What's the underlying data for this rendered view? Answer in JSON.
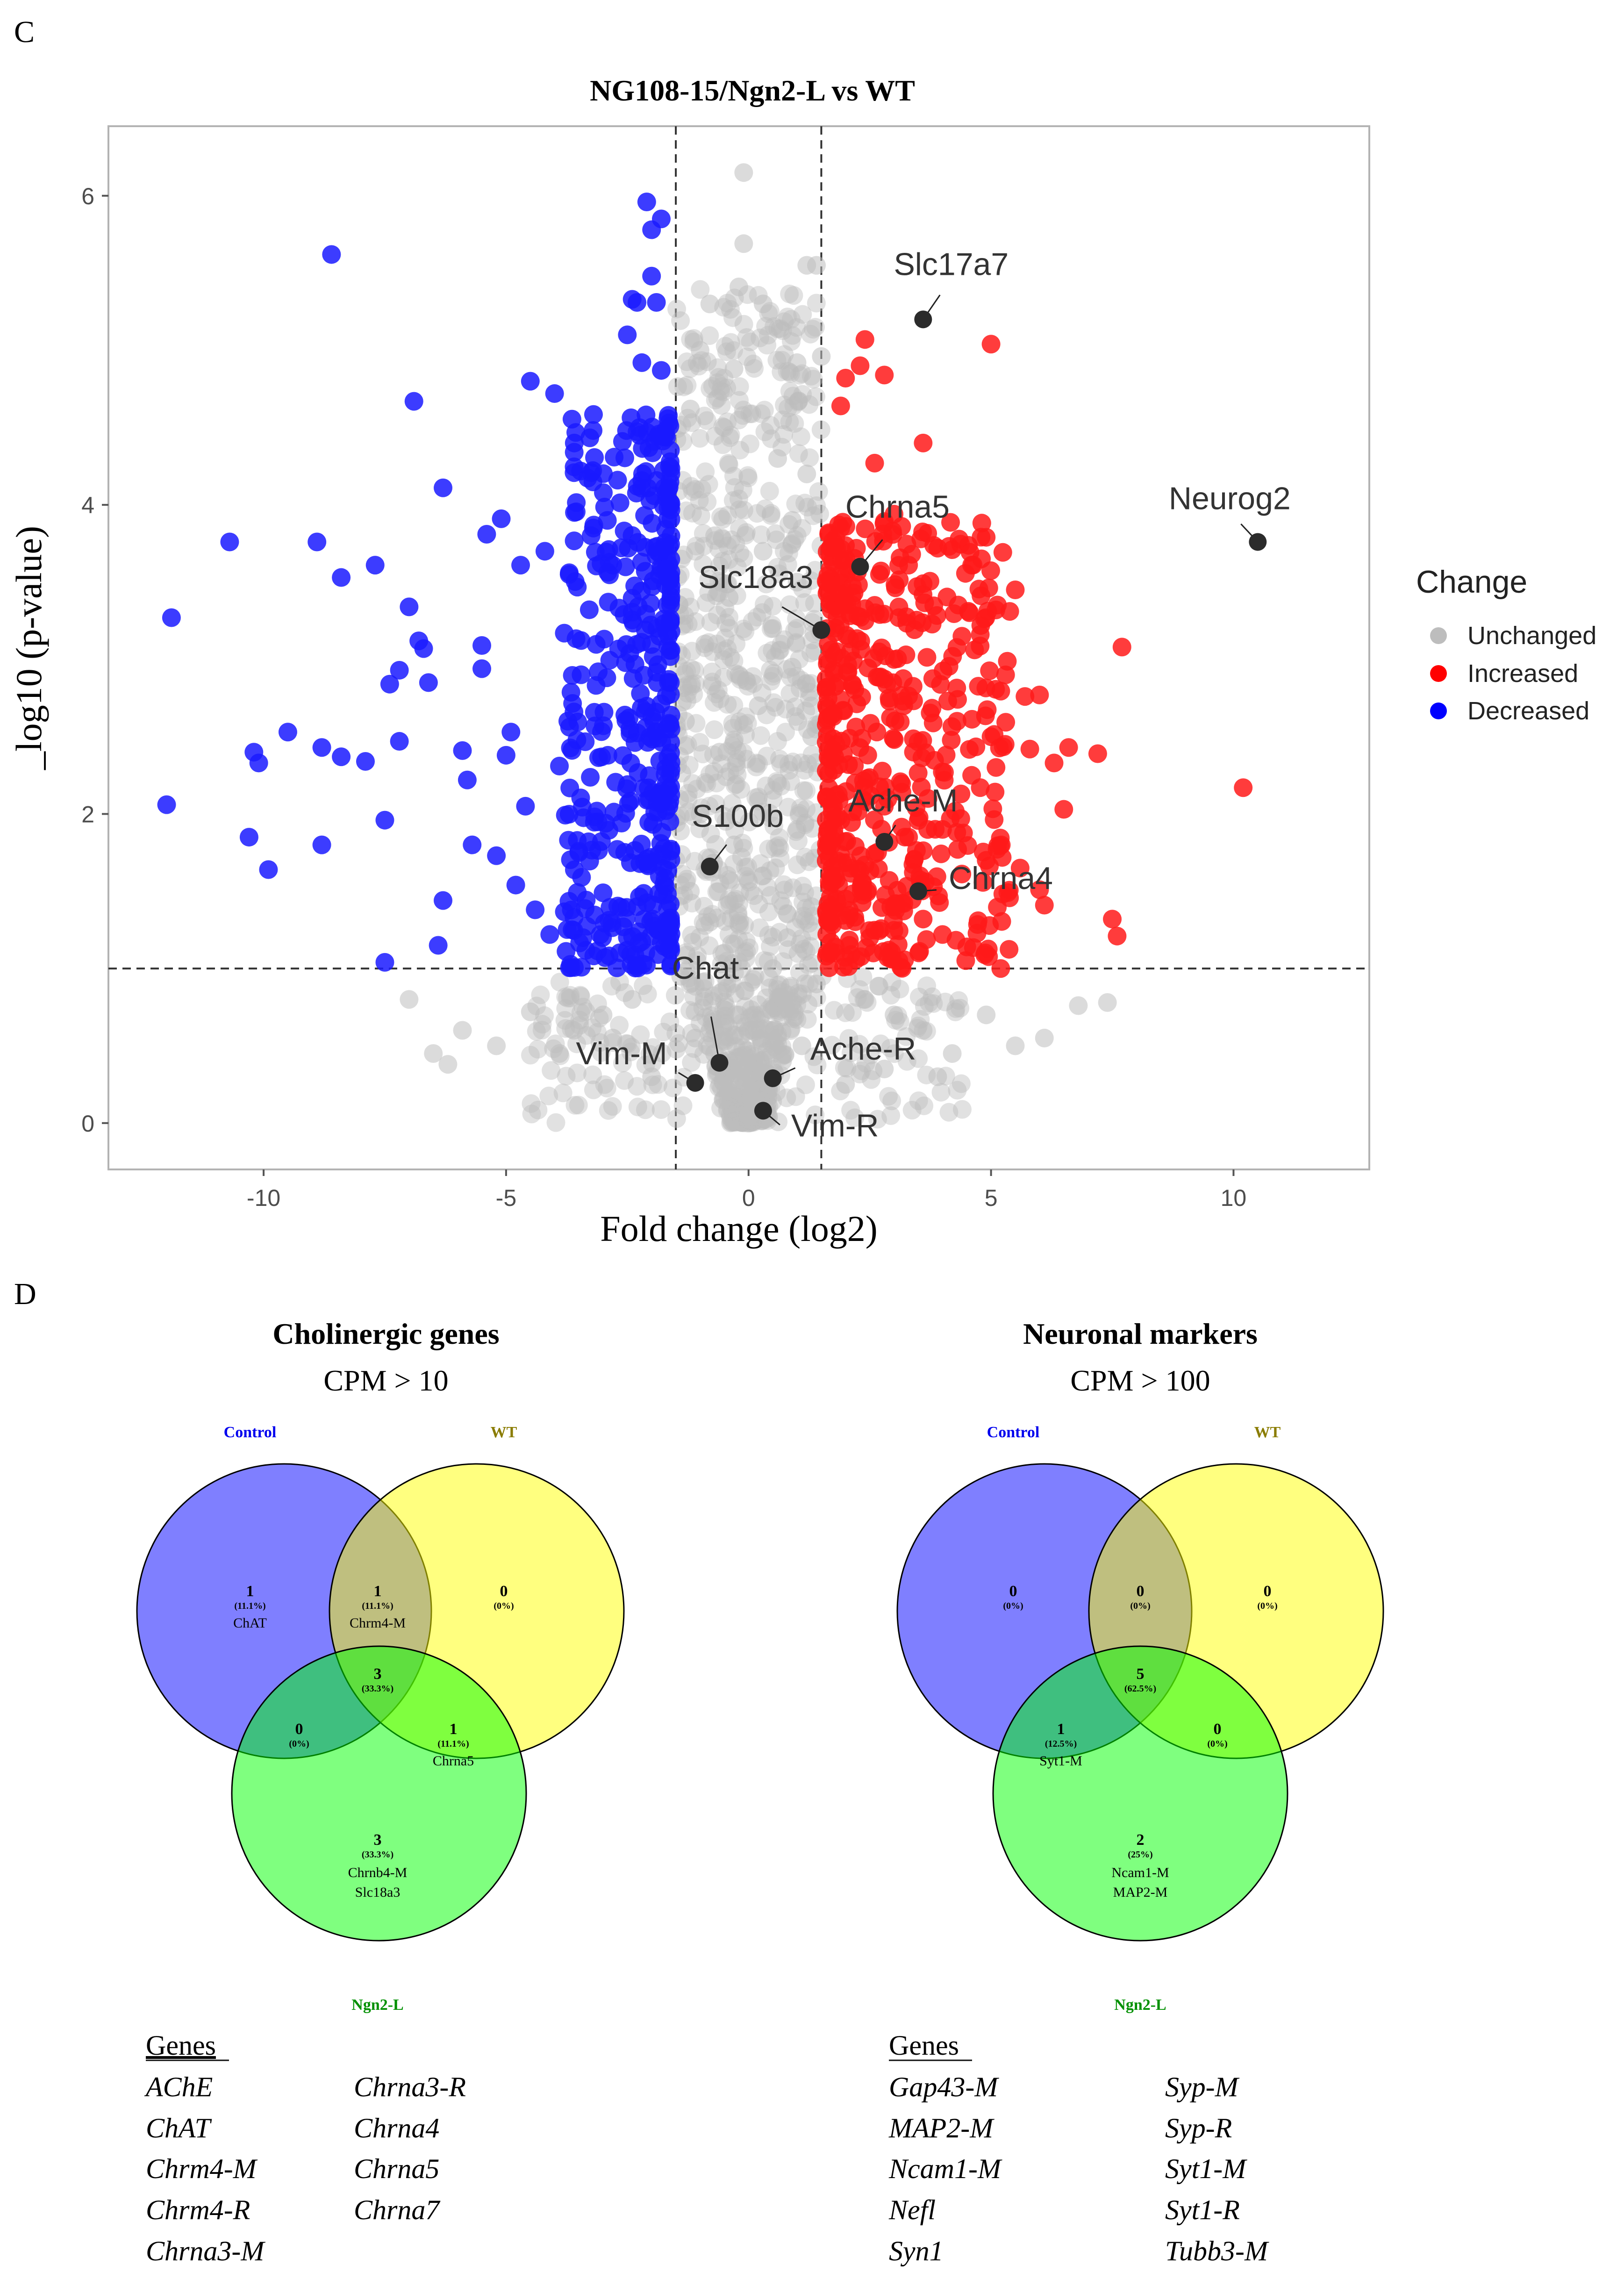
{
  "panel_c": {
    "letter": "C"
  },
  "panel_d": {
    "letter": "D"
  },
  "chart_data": [
    {
      "type": "scatter",
      "title": "NG108-15/Ngn2-L vs WT",
      "xlabel": "Fold change (log2)",
      "ylabel": "_log10 (p-value)",
      "xlim": [
        -13.2,
        12.8
      ],
      "ylim": [
        -0.3,
        6.45
      ],
      "xticks": [
        -10,
        -5,
        0,
        5,
        10
      ],
      "xtick_labels": [
        "-10",
        "-5",
        "0",
        "5",
        "10"
      ],
      "yticks": [
        0,
        2,
        4,
        6
      ],
      "ytick_labels": [
        "0",
        "2",
        "4",
        "6"
      ],
      "thresholds": {
        "log2fc": [
          -1.5,
          1.5
        ],
        "neg_log10_p": 1.0
      },
      "grid": false,
      "legend": {
        "title": "Change",
        "placement": "right",
        "entries": [
          {
            "label": "Unchanged",
            "color": "#bdbdbd"
          },
          {
            "label": "Increased",
            "color": "#ff0000"
          },
          {
            "label": "Decreased",
            "color": "#0000ff"
          }
        ]
      },
      "colors": {
        "unchanged": "#bdbdbd",
        "increased": "#ff1a1a",
        "decreased": "#1a1aff",
        "labeled": "#2b2b2b"
      },
      "series": [
        {
          "name": "Decreased",
          "points": [
            [
              -11.9,
              3.27
            ],
            [
              -12.0,
              2.06
            ],
            [
              -10.7,
              3.76
            ],
            [
              -10.2,
              2.4
            ],
            [
              -10.1,
              2.33
            ],
            [
              -10.3,
              1.85
            ],
            [
              -9.9,
              1.64
            ],
            [
              -9.5,
              2.53
            ],
            [
              -8.9,
              3.76
            ],
            [
              -8.8,
              2.43
            ],
            [
              -8.8,
              1.8
            ],
            [
              -8.6,
              5.62
            ],
            [
              -8.4,
              3.53
            ],
            [
              -8.4,
              2.37
            ],
            [
              -7.9,
              2.34
            ],
            [
              -7.7,
              3.61
            ],
            [
              -7.5,
              1.96
            ],
            [
              -7.4,
              2.84
            ],
            [
              -7.2,
              2.93
            ],
            [
              -7.2,
              2.47
            ],
            [
              -7.0,
              3.34
            ],
            [
              -6.8,
              3.12
            ],
            [
              -6.7,
              3.07
            ],
            [
              -6.6,
              2.85
            ],
            [
              -6.9,
              4.67
            ],
            [
              -6.3,
              4.11
            ],
            [
              -5.9,
              2.41
            ],
            [
              -5.8,
              2.22
            ],
            [
              -5.7,
              1.8
            ],
            [
              -5.5,
              3.09
            ],
            [
              -5.5,
              2.94
            ],
            [
              -5.4,
              3.81
            ],
            [
              -5.1,
              3.91
            ],
            [
              -5.0,
              2.38
            ],
            [
              -4.9,
              2.53
            ],
            [
              -4.7,
              3.61
            ],
            [
              -4.6,
              2.05
            ],
            [
              -4.5,
              4.8
            ],
            [
              -4.2,
              3.7
            ],
            [
              -4.0,
              4.72
            ],
            [
              -3.9,
              2.31
            ],
            [
              -3.8,
              3.17
            ],
            [
              -3.7,
              3.55
            ],
            [
              -3.6,
              2.66
            ],
            [
              -3.5,
              1.75
            ],
            [
              -3.3,
              1.82
            ],
            [
              -3.2,
              3.85
            ],
            [
              -3.1,
              2.92
            ],
            [
              -3.0,
              1.49
            ],
            [
              -2.9,
              2.38
            ],
            [
              -2.8,
              3.61
            ],
            [
              -2.7,
              4.16
            ],
            [
              -2.6,
              4.41
            ],
            [
              -2.5,
              5.1
            ],
            [
              -2.4,
              5.33
            ],
            [
              -2.3,
              5.31
            ],
            [
              -2.2,
              4.92
            ],
            [
              -2.1,
              5.96
            ],
            [
              -2.0,
              5.78
            ],
            [
              -2.0,
              5.48
            ],
            [
              -1.9,
              5.31
            ],
            [
              -1.8,
              4.87
            ],
            [
              -1.8,
              5.85
            ],
            [
              -6.4,
              1.15
            ],
            [
              -6.3,
              1.44
            ],
            [
              -7.5,
              1.04
            ],
            [
              -5.2,
              1.73
            ],
            [
              -4.8,
              1.54
            ],
            [
              -4.4,
              1.38
            ],
            [
              -4.1,
              1.22
            ]
          ]
        },
        {
          "name": "Increased",
          "points": [
            [
              1.9,
              4.64
            ],
            [
              2.0,
              4.82
            ],
            [
              2.3,
              4.9
            ],
            [
              2.4,
              5.07
            ],
            [
              2.8,
              4.84
            ],
            [
              2.6,
              4.27
            ],
            [
              3.6,
              4.4
            ],
            [
              3.0,
              3.94
            ],
            [
              3.3,
              3.61
            ],
            [
              3.6,
              3.49
            ],
            [
              3.9,
              3.72
            ],
            [
              4.2,
              3.71
            ],
            [
              4.6,
              3.61
            ],
            [
              4.9,
              3.79
            ],
            [
              5.0,
              5.04
            ],
            [
              5.1,
              3.32
            ],
            [
              5.5,
              3.45
            ],
            [
              5.7,
              2.76
            ],
            [
              6.0,
              2.77
            ],
            [
              6.3,
              2.33
            ],
            [
              6.5,
              2.03
            ],
            [
              6.6,
              2.43
            ],
            [
              5.8,
              2.42
            ],
            [
              6.0,
              1.51
            ],
            [
              6.1,
              1.41
            ],
            [
              7.2,
              2.39
            ],
            [
              7.7,
              3.08
            ],
            [
              7.5,
              1.32
            ],
            [
              7.6,
              1.21
            ],
            [
              10.2,
              2.17
            ],
            [
              5.2,
              1.0
            ],
            [
              4.5,
              1.14
            ],
            [
              4.0,
              1.22
            ],
            [
              3.6,
              1.32
            ],
            [
              2.9,
              1.57
            ],
            [
              2.3,
              1.63
            ],
            [
              2.2,
              1.79
            ],
            [
              1.8,
              1.97
            ],
            [
              1.7,
              2.35
            ],
            [
              1.9,
              2.74
            ],
            [
              2.1,
              3.05
            ],
            [
              2.4,
              3.25
            ],
            [
              2.7,
              3.55
            ],
            [
              3.0,
              3.0
            ],
            [
              3.2,
              2.7
            ],
            [
              3.4,
              2.4
            ],
            [
              3.7,
              2.1
            ],
            [
              4.0,
              1.9
            ],
            [
              4.3,
              2.6
            ],
            [
              4.6,
              2.25
            ],
            [
              4.9,
              1.7
            ],
            [
              5.3,
              2.9
            ],
            [
              5.6,
              1.65
            ],
            [
              1.7,
              1.3
            ],
            [
              1.8,
              1.1
            ],
            [
              2.0,
              1.45
            ],
            [
              2.5,
              1.2
            ],
            [
              3.1,
              1.05
            ],
            [
              3.3,
              1.85
            ],
            [
              1.9,
              3.85
            ],
            [
              2.6,
              3.35
            ],
            [
              4.4,
              3.15
            ],
            [
              5.0,
              2.5
            ],
            [
              2.2,
              2.2
            ],
            [
              2.8,
              2.05
            ]
          ]
        },
        {
          "name": "Unchanged",
          "points": [
            [
              -0.1,
              6.15
            ],
            [
              -0.1,
              5.69
            ],
            [
              -0.2,
              5.41
            ],
            [
              0.3,
              5.3
            ],
            [
              -0.8,
              5.3
            ],
            [
              1.2,
              5.55
            ],
            [
              1.4,
              5.55
            ],
            [
              -1.0,
              5.0
            ],
            [
              1.0,
              4.92
            ],
            [
              1.5,
              4.96
            ],
            [
              -0.3,
              4.88
            ],
            [
              -1.2,
              4.62
            ],
            [
              -0.5,
              4.5
            ],
            [
              0.6,
              4.3
            ],
            [
              1.2,
              4.2
            ],
            [
              -1.1,
              4.1
            ],
            [
              0.9,
              3.9
            ],
            [
              -0.7,
              3.8
            ],
            [
              0.3,
              3.7
            ],
            [
              1.0,
              3.5
            ],
            [
              -0.4,
              3.4
            ],
            [
              0.5,
              3.2
            ],
            [
              -0.9,
              3.1
            ],
            [
              0.9,
              2.95
            ],
            [
              -0.2,
              2.9
            ],
            [
              0.2,
              2.7
            ],
            [
              -1.3,
              2.6
            ],
            [
              1.3,
              2.5
            ],
            [
              -0.6,
              2.4
            ],
            [
              0.6,
              2.2
            ],
            [
              -1.0,
              2.0
            ],
            [
              1.0,
              1.9
            ],
            [
              -0.3,
              1.8
            ],
            [
              0.3,
              1.6
            ],
            [
              -1.2,
              1.5
            ],
            [
              1.3,
              1.4
            ],
            [
              -0.8,
              1.3
            ],
            [
              0.8,
              1.2
            ],
            [
              -0.5,
              1.1
            ],
            [
              0.5,
              1.0
            ],
            [
              -1.4,
              0.95
            ],
            [
              1.4,
              0.9
            ],
            [
              -0.2,
              0.7
            ],
            [
              0.2,
              0.6
            ],
            [
              -0.7,
              0.45
            ],
            [
              0.7,
              0.4
            ],
            [
              -1.1,
              0.55
            ],
            [
              1.1,
              0.5
            ],
            [
              -0.1,
              0.25
            ],
            [
              0.1,
              0.15
            ],
            [
              0.0,
              0.05
            ],
            [
              -2.4,
              0.8
            ],
            [
              -3.0,
              0.7
            ],
            [
              -3.6,
              0.6
            ],
            [
              -4.5,
              0.72
            ],
            [
              -5.2,
              0.5
            ],
            [
              -5.9,
              0.6
            ],
            [
              -6.5,
              0.45
            ],
            [
              -7.0,
              0.8
            ],
            [
              -3.9,
              0.45
            ],
            [
              -2.8,
              0.55
            ],
            [
              2.4,
              0.8
            ],
            [
              3.0,
              0.7
            ],
            [
              3.6,
              0.6
            ],
            [
              4.2,
              0.45
            ],
            [
              4.9,
              0.7
            ],
            [
              5.5,
              0.5
            ],
            [
              6.1,
              0.55
            ],
            [
              6.8,
              0.76
            ],
            [
              7.4,
              0.78
            ],
            [
              2.8,
              0.35
            ],
            [
              3.9,
              0.3
            ],
            [
              -6.2,
              0.38
            ],
            [
              -2.0,
              0.3
            ],
            [
              2.0,
              0.25
            ]
          ]
        }
      ],
      "labeled_genes": [
        {
          "label": "Slc17a7",
          "x": 3.6,
          "y": 5.2
        },
        {
          "label": "Neurog2",
          "x": 10.5,
          "y": 3.76
        },
        {
          "label": "Chrna5",
          "x": 2.3,
          "y": 3.6
        },
        {
          "label": "Slc18a3",
          "x": 1.5,
          "y": 3.19
        },
        {
          "label": "Ache-M",
          "x": 2.8,
          "y": 1.82
        },
        {
          "label": "S100b",
          "x": -0.8,
          "y": 1.66
        },
        {
          "label": "Chrna4",
          "x": 3.5,
          "y": 1.5
        },
        {
          "label": "Chat",
          "x": -0.6,
          "y": 0.39
        },
        {
          "label": "Ache-R",
          "x": 0.5,
          "y": 0.29
        },
        {
          "label": "Vim-M",
          "x": -1.1,
          "y": 0.26
        },
        {
          "label": "Vim-R",
          "x": 0.3,
          "y": 0.08
        }
      ]
    }
  ],
  "venns": [
    {
      "title": "Cholinergic genes",
      "subtitle": "CPM > 10",
      "sets": [
        {
          "name": "Control",
          "color": "#0000ff"
        },
        {
          "name": "WT",
          "color": "#9a8a00"
        },
        {
          "name": "Ngn2-L",
          "color": "#00a000"
        }
      ],
      "regions": {
        "control_only": {
          "count": "1",
          "pct": "(11.1%)",
          "genes": [
            "ChAT"
          ]
        },
        "control_wt": {
          "count": "1",
          "pct": "(11.1%)",
          "genes": [
            "Chrm4-M"
          ]
        },
        "wt_only": {
          "count": "0",
          "pct": "(0%)",
          "genes": []
        },
        "all_three": {
          "count": "3",
          "pct": "(33.3%)",
          "genes": []
        },
        "control_ngn2": {
          "count": "0",
          "pct": "(0%)",
          "genes": []
        },
        "wt_ngn2": {
          "count": "1",
          "pct": "(11.1%)",
          "genes": [
            "Chrna5"
          ]
        },
        "ngn2_only": {
          "count": "3",
          "pct": "(33.3%)",
          "genes": [
            "Chrnb4-M",
            "Slc18a3"
          ]
        }
      },
      "gene_list_title": "Genes",
      "gene_list": [
        [
          "AChE",
          "Chrna3-R"
        ],
        [
          "ChAT",
          "Chrna4"
        ],
        [
          "Chrm4-M",
          "Chrna5"
        ],
        [
          "Chrm4-R",
          "Chrna7"
        ],
        [
          "Chrna3-M",
          ""
        ]
      ]
    },
    {
      "title": "Neuronal markers",
      "subtitle": "CPM > 100",
      "sets": [
        {
          "name": "Control",
          "color": "#0000ff"
        },
        {
          "name": "WT",
          "color": "#9a8a00"
        },
        {
          "name": "Ngn2-L",
          "color": "#00a000"
        }
      ],
      "regions": {
        "control_only": {
          "count": "0",
          "pct": "(0%)",
          "genes": []
        },
        "control_wt": {
          "count": "0",
          "pct": "(0%)",
          "genes": []
        },
        "wt_only": {
          "count": "0",
          "pct": "(0%)",
          "genes": []
        },
        "all_three": {
          "count": "5",
          "pct": "(62.5%)",
          "genes": []
        },
        "control_ngn2": {
          "count": "1",
          "pct": "(12.5%)",
          "genes": [
            "Syt1-M"
          ]
        },
        "wt_ngn2": {
          "count": "0",
          "pct": "(0%)",
          "genes": []
        },
        "ngn2_only": {
          "count": "2",
          "pct": "(25%)",
          "genes": [
            "Ncam1-M",
            "MAP2-M"
          ]
        }
      },
      "gene_list_title": "Genes",
      "gene_list": [
        [
          "Gap43-M",
          "Syp-M"
        ],
        [
          "MAP2-M",
          "Syp-R"
        ],
        [
          "Ncam1-M",
          "Syt1-M"
        ],
        [
          "Nefl",
          "Syt1-R"
        ],
        [
          "Syn1",
          "Tubb3-M"
        ]
      ]
    }
  ]
}
